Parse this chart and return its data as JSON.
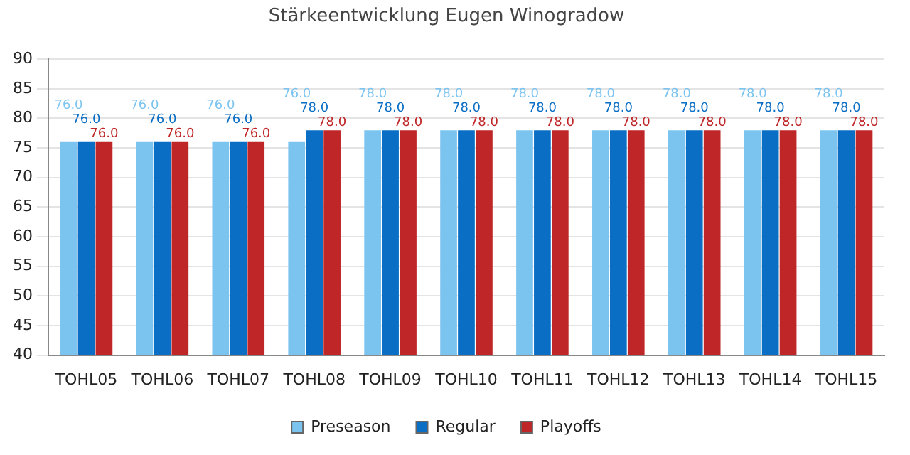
{
  "chart_data": {
    "type": "bar",
    "title": "Stärkeentwicklung Eugen Winogradow",
    "categories": [
      "TOHL05",
      "TOHL06",
      "TOHL07",
      "TOHL08",
      "TOHL09",
      "TOHL10",
      "TOHL11",
      "TOHL12",
      "TOHL13",
      "TOHL14",
      "TOHL15"
    ],
    "series": [
      {
        "name": "Preseason",
        "color": "#7cc4f0",
        "values": [
          76,
          76,
          76,
          76,
          78,
          78,
          78,
          78,
          78,
          78,
          78
        ],
        "value_labels": [
          "76.0",
          "76.0",
          "76.0",
          "76.0",
          "78.0",
          "78.0",
          "78.0",
          "78.0",
          "78.0",
          "78.0",
          "78.0"
        ]
      },
      {
        "name": "Regular",
        "color": "#0a6fc4",
        "values": [
          76,
          76,
          76,
          78,
          78,
          78,
          78,
          78,
          78,
          78,
          78
        ],
        "value_labels": [
          "76.0",
          "76.0",
          "76.0",
          "78.0",
          "78.0",
          "78.0",
          "78.0",
          "78.0",
          "78.0",
          "78.0",
          "78.0"
        ]
      },
      {
        "name": "Playoffs",
        "color": "#bf2628",
        "values": [
          76,
          76,
          76,
          78,
          78,
          78,
          78,
          78,
          78,
          78,
          78
        ],
        "value_labels": [
          "76.0",
          "76.0",
          "76.0",
          "78.0",
          "78.0",
          "78.0",
          "78.0",
          "78.0",
          "78.0",
          "78.0",
          "78.0"
        ]
      }
    ],
    "ylim": [
      40,
      90
    ],
    "yticks": [
      40,
      45,
      50,
      55,
      60,
      65,
      70,
      75,
      80,
      85,
      90
    ],
    "grid": "y",
    "legend": "bottom"
  }
}
